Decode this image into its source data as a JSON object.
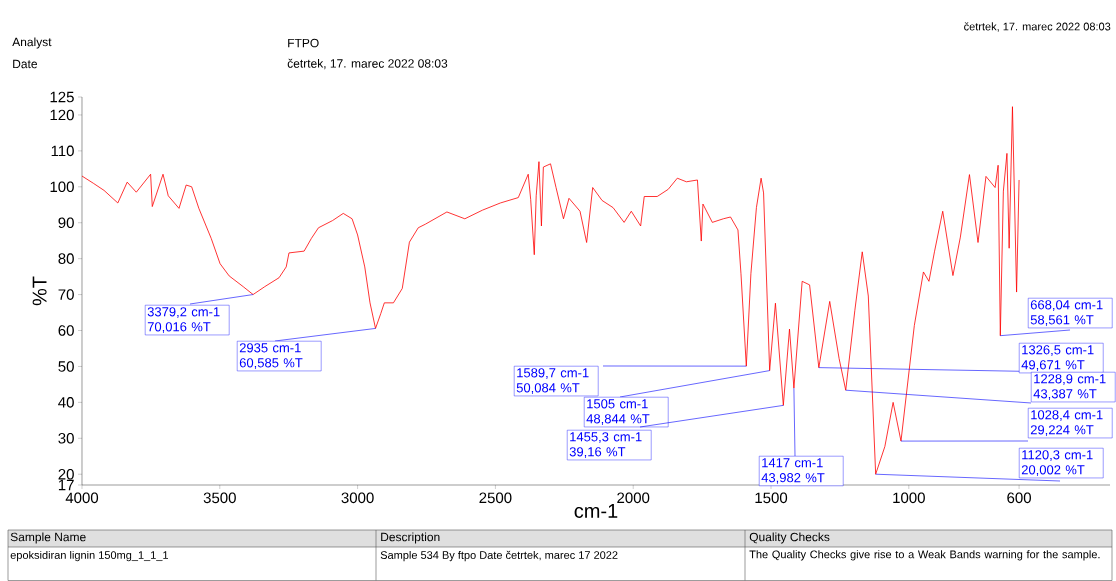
{
  "chart_data": {
    "type": "line",
    "xlabel": "cm-1",
    "ylabel": "%T",
    "xlim": [
      4000,
      270
    ],
    "xticks": [
      4000,
      3500,
      3000,
      2500,
      2000,
      1500,
      1000,
      600
    ],
    "ylim": [
      17,
      125
    ],
    "yticks": [
      17,
      20,
      30,
      40,
      50,
      60,
      70,
      80,
      90,
      100,
      110,
      120,
      125
    ],
    "grid": false,
    "series": [
      {
        "color": "#ff0000",
        "x": [
          4000,
          3959,
          3920,
          3870,
          3836,
          3803,
          3751,
          3745,
          3706,
          3687,
          3648,
          3622,
          3602,
          3576,
          3531,
          3499,
          3466,
          3415,
          3379.2,
          3337,
          3285,
          3259,
          3249,
          3194,
          3168,
          3142,
          3091,
          3052,
          3020,
          3000,
          2974,
          2955,
          2935,
          2916,
          2903,
          2870,
          2838,
          2812,
          2780,
          2754,
          2676,
          2611,
          2547,
          2482,
          2417,
          2381,
          2372,
          2359,
          2352,
          2342,
          2333,
          2326,
          2300,
          2280,
          2253,
          2233,
          2193,
          2169,
          2147,
          2113,
          2073,
          2033,
          2007,
          1973,
          1960,
          1913,
          1873,
          1840,
          1807,
          1767,
          1753,
          1747,
          1713,
          1673,
          1647,
          1620,
          1609,
          1589.7,
          1573,
          1553,
          1536,
          1527,
          1505,
          1484,
          1455.3,
          1433,
          1417,
          1387,
          1360,
          1326.5,
          1287,
          1253,
          1228.9,
          1196,
          1169,
          1147,
          1120.3,
          1087,
          1057,
          1028.4,
          980,
          947,
          927,
          907,
          877,
          840,
          813,
          780,
          749,
          720,
          687,
          676,
          668.04,
          657,
          644,
          636,
          624,
          609,
          600
        ],
        "values": [
          103,
          101,
          99,
          95.5,
          101.3,
          98.5,
          103.5,
          94.5,
          103.5,
          97.5,
          94,
          100.5,
          100,
          94,
          85.6,
          78.6,
          75.2,
          72.2,
          70.016,
          72.2,
          74.7,
          77.7,
          81.6,
          82.1,
          85.6,
          88.6,
          90.6,
          92.6,
          91.1,
          86.6,
          77.7,
          67.7,
          60.585,
          64.7,
          67.7,
          67.7,
          71.7,
          84.6,
          88.6,
          89.6,
          93,
          91.1,
          93.5,
          95.5,
          97,
          103.5,
          96.5,
          81.1,
          97.5,
          107,
          89.1,
          105.5,
          106.4,
          99.8,
          91.1,
          96.8,
          93.2,
          84.5,
          99.8,
          96.2,
          94.2,
          90.1,
          93.2,
          89.1,
          97.3,
          97.3,
          99.3,
          102.4,
          101.4,
          101.9,
          84.9,
          95.2,
          90.1,
          91.1,
          91.6,
          88,
          75.8,
          50.084,
          75.8,
          94.2,
          102.4,
          98.3,
          48.844,
          67.6,
          39.16,
          60.4,
          43.982,
          73.7,
          72.7,
          49.671,
          68.1,
          52.2,
          43.387,
          65.5,
          81.9,
          69.6,
          20.002,
          27.7,
          40,
          29.224,
          61.4,
          76.3,
          73.7,
          81.9,
          93.2,
          75.3,
          86,
          103.4,
          84.5,
          102.9,
          99.8,
          106,
          58.561,
          98.8,
          109.3,
          82.9,
          122.3,
          70.7,
          101.9
        ]
      }
    ],
    "annotations": [
      {
        "text": "3379,2 cm-1 70,016 %T",
        "x": 3379.2,
        "y": 70.016
      },
      {
        "text": "2935 cm-1 60,585 %T",
        "x": 2935,
        "y": 60.585
      },
      {
        "text": "1589,7 cm-1 50,084 %T",
        "x": 1589.7,
        "y": 50.084
      },
      {
        "text": "1505 cm-1 48,844 %T",
        "x": 1505,
        "y": 48.844
      },
      {
        "text": "1455,3 cm-1 39,16 %T",
        "x": 1455.3,
        "y": 39.16
      },
      {
        "text": "1417 cm-1 43,982 %T",
        "x": 1417,
        "y": 43.982
      },
      {
        "text": "668,04 cm-1 58,561 %T",
        "x": 668.04,
        "y": 58.561
      },
      {
        "text": "1326,5 cm-1 49,671 %T",
        "x": 1326.5,
        "y": 49.671
      },
      {
        "text": "1228,9 cm-1 43,387 %T",
        "x": 1228.9,
        "y": 43.387
      },
      {
        "text": "1028,4 cm-1 29,224 %T",
        "x": 1028.4,
        "y": 29.224
      },
      {
        "text": "1120,3 cm-1 20,002 %T",
        "x": 1120.3,
        "y": 20.002
      },
      "četrtek, 17. marec 2022 08:03",
      "Analyst",
      "FTPO",
      "Date",
      "četrtek, 17. marec 2022 08:03",
      "Sample Name",
      "Description",
      "Quality Checks",
      "epoksidiran lignin 150mg_1_1_1",
      "Sample 534 By ftpo Date četrtek, marec 17 2022",
      "The Quality Checks give rise to a Weak Bands warning for the sample."
    ]
  }
}
